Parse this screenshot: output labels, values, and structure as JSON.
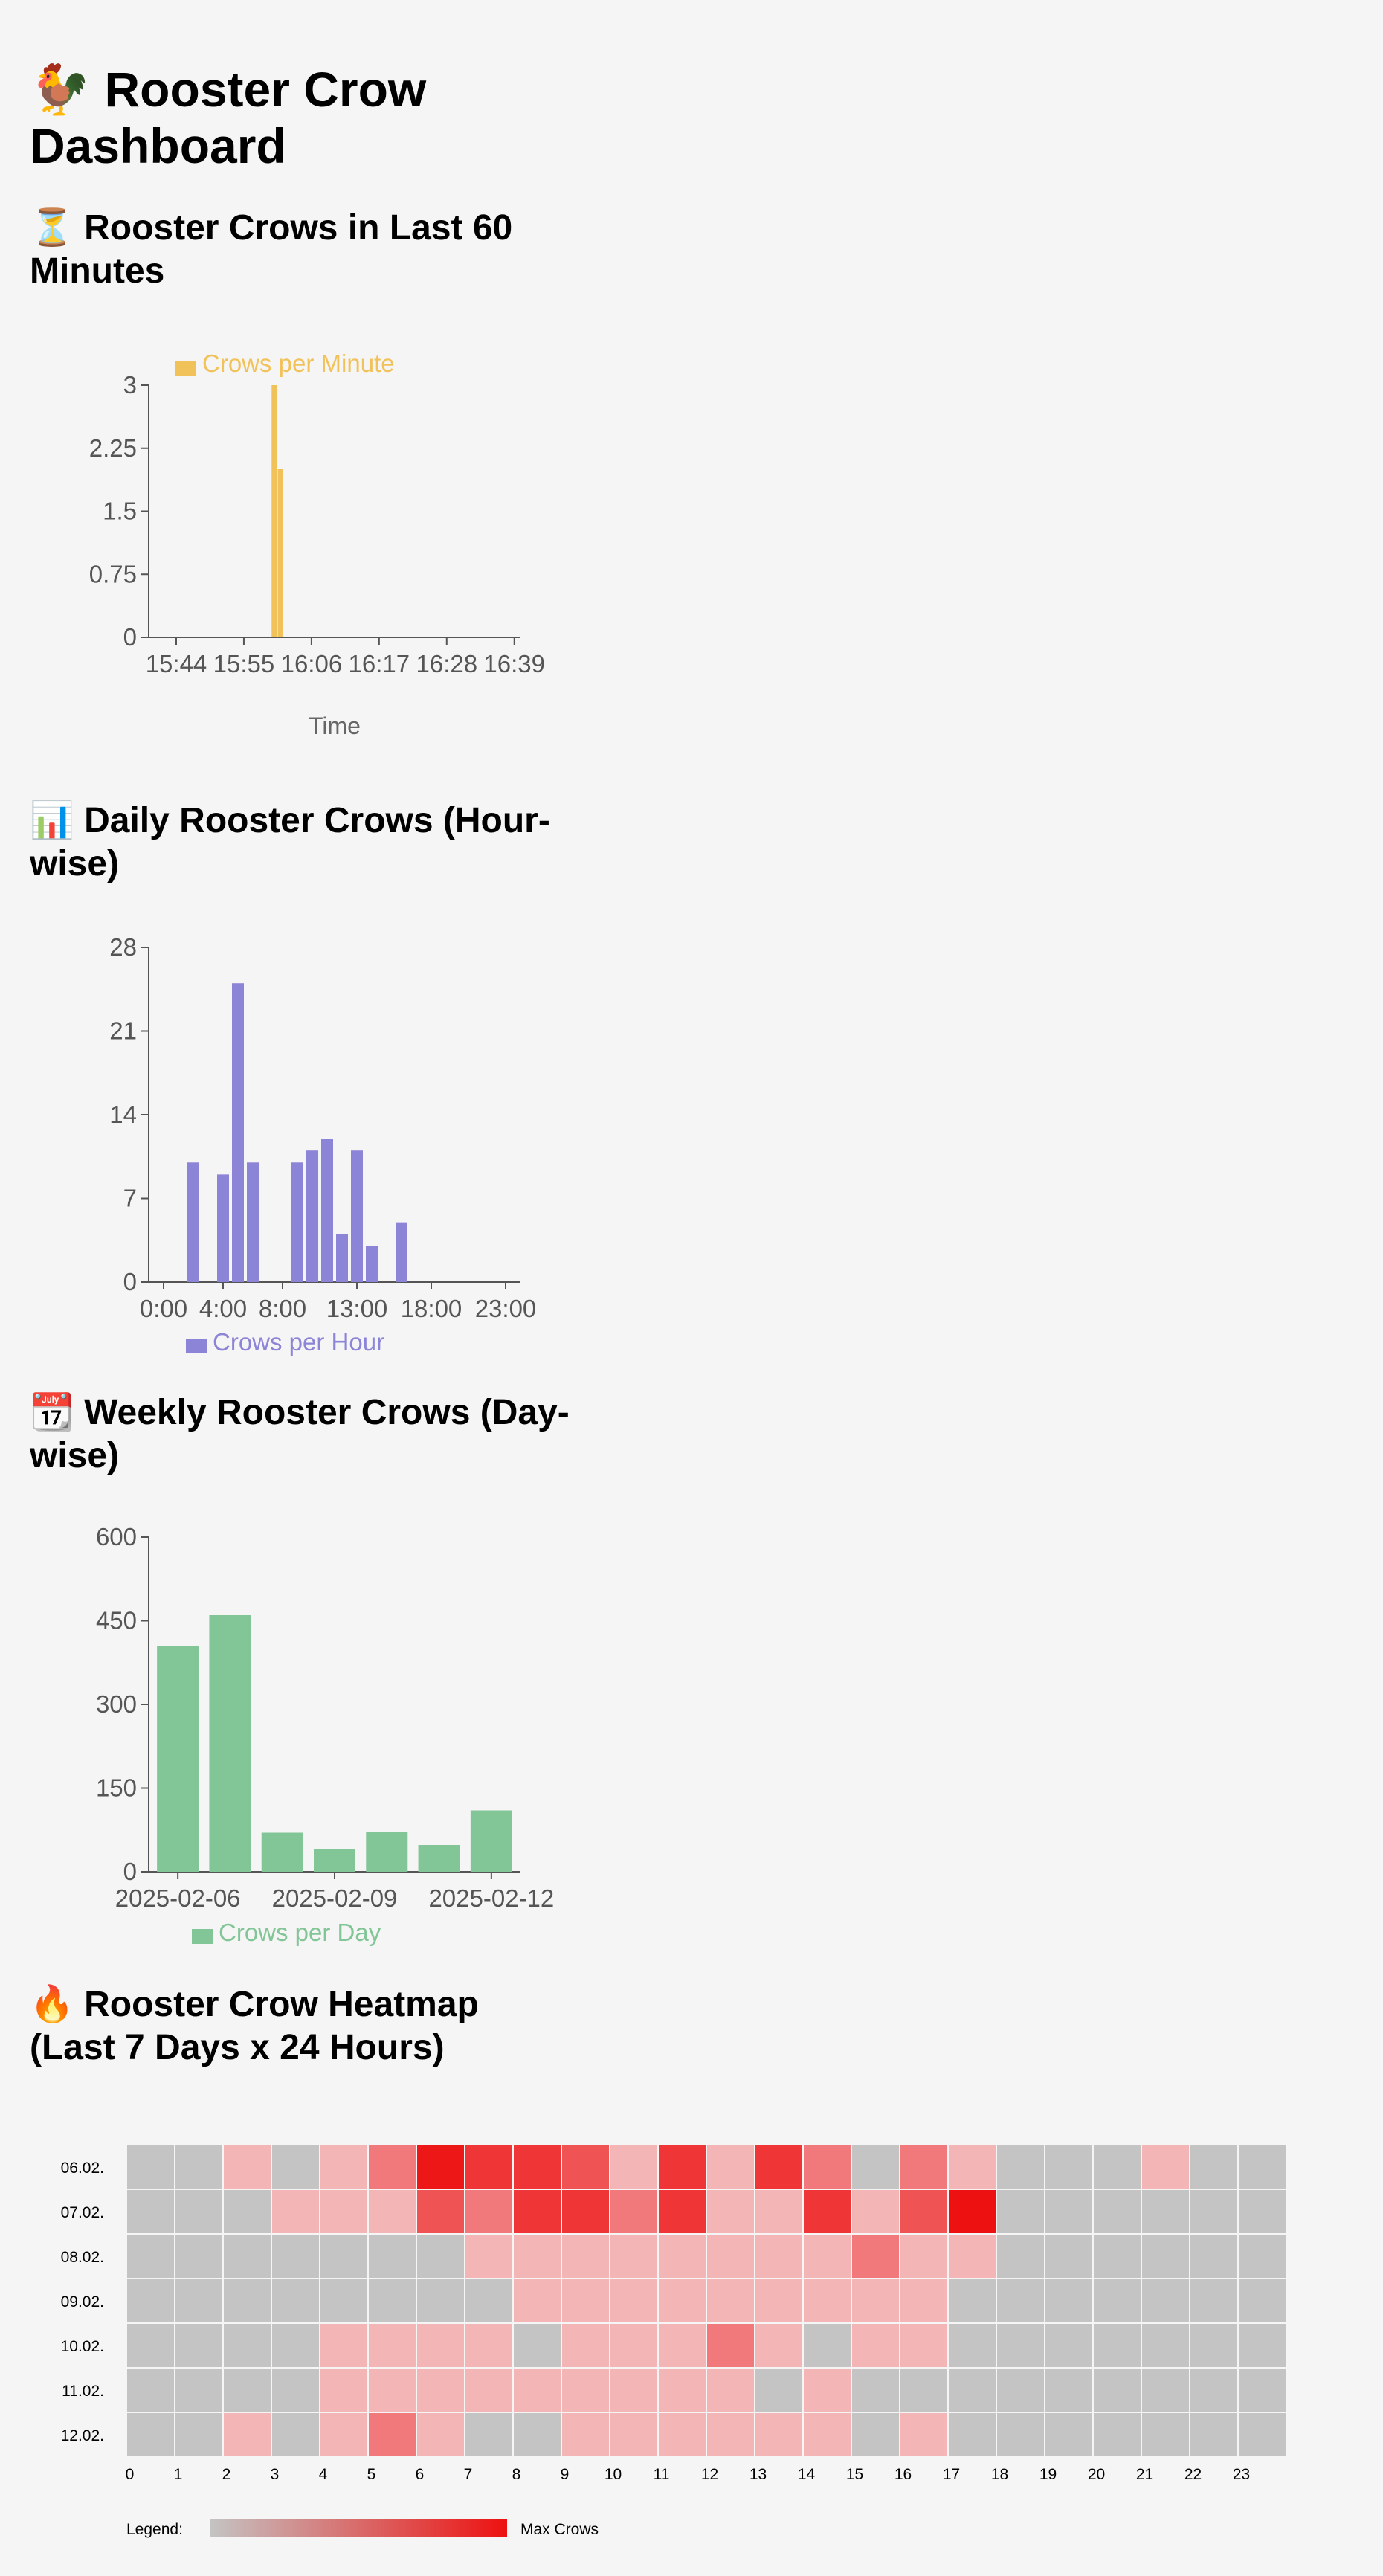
{
  "header": {
    "icon": "rooster-icon",
    "title": "🐓 Rooster Crow Dashboard"
  },
  "sections": {
    "minute": {
      "icon": "hourglass-icon",
      "title": "⏳ Rooster Crows in Last 60 Minutes"
    },
    "hourly": {
      "icon": "bar-chart-icon",
      "title": "📊 Daily Rooster Crows (Hour-wise)"
    },
    "weekly": {
      "icon": "calendar-icon",
      "title": "📆 Weekly Rooster Crows (Day-wise)"
    },
    "heatmap": {
      "icon": "fire-icon",
      "title": "🔥 Rooster Crow Heatmap (Last 7 Days x 24 Hours)"
    }
  },
  "colors": {
    "minute": "#f2c25a",
    "hourly": "#8c84d6",
    "weekly": "#82c596",
    "heat_empty": "#c4c4c4",
    "heat_low": "#f4c4c6",
    "heat_high": "#ee1111"
  },
  "chart_data": [
    {
      "id": "minute",
      "type": "bar",
      "legend": "Crows per Minute",
      "legend_position": "top",
      "xlabel": "Time",
      "ylabel": "",
      "ylim": [
        0,
        3
      ],
      "yticks": [
        0,
        0.75,
        1.5,
        2.25,
        3
      ],
      "xticks": [
        "15:44",
        "15:55",
        "16:06",
        "16:17",
        "16:28",
        "16:39"
      ],
      "x_minute_range": [
        944,
        1000
      ],
      "x": [
        "16:00",
        "16:01"
      ],
      "values": [
        3,
        2
      ]
    },
    {
      "id": "hourly",
      "type": "bar",
      "legend": "Crows per Hour",
      "legend_position": "bottom",
      "ylim": [
        0,
        28
      ],
      "yticks": [
        0,
        7,
        14,
        21,
        28
      ],
      "xticks": [
        "0:00",
        "4:00",
        "8:00",
        "13:00",
        "18:00",
        "23:00"
      ],
      "categories": [
        "0:00",
        "1:00",
        "2:00",
        "3:00",
        "4:00",
        "5:00",
        "6:00",
        "7:00",
        "8:00",
        "9:00",
        "10:00",
        "11:00",
        "12:00",
        "13:00",
        "14:00",
        "15:00",
        "16:00",
        "17:00",
        "18:00",
        "19:00",
        "20:00",
        "21:00",
        "22:00",
        "23:00"
      ],
      "values": [
        0,
        0,
        10,
        0,
        9,
        25,
        10,
        0,
        0,
        10,
        11,
        12,
        4,
        11,
        3,
        0,
        5,
        0,
        0,
        0,
        0,
        0,
        0,
        0
      ]
    },
    {
      "id": "weekly",
      "type": "bar",
      "legend": "Crows per Day",
      "legend_position": "bottom",
      "ylim": [
        0,
        600
      ],
      "yticks": [
        0,
        150,
        300,
        450,
        600
      ],
      "xticks": [
        "2025-02-06",
        "2025-02-09",
        "2025-02-12"
      ],
      "categories": [
        "2025-02-06",
        "2025-02-07",
        "2025-02-08",
        "2025-02-09",
        "2025-02-10",
        "2025-02-11",
        "2025-02-12"
      ],
      "values": [
        405,
        460,
        70,
        40,
        72,
        48,
        110
      ]
    },
    {
      "id": "heatmap",
      "type": "heatmap",
      "legend_label": "Legend:",
      "legend_max_label": "Max Crows",
      "rows": [
        "06.02.",
        "07.02.",
        "08.02.",
        "09.02.",
        "10.02.",
        "11.02.",
        "12.02."
      ],
      "columns": [
        "0",
        "1",
        "2",
        "3",
        "4",
        "5",
        "6",
        "7",
        "8",
        "9",
        "10",
        "11",
        "12",
        "13",
        "14",
        "15",
        "16",
        "17",
        "18",
        "19",
        "20",
        "21",
        "22",
        "23"
      ],
      "max": 60,
      "values": [
        [
          0,
          0,
          5,
          0,
          5,
          25,
          58,
          48,
          48,
          38,
          5,
          48,
          5,
          48,
          25,
          0,
          25,
          5,
          0,
          0,
          0,
          5,
          0,
          0
        ],
        [
          0,
          0,
          0,
          5,
          5,
          5,
          38,
          25,
          48,
          48,
          25,
          48,
          5,
          5,
          48,
          5,
          38,
          60,
          0,
          0,
          0,
          0,
          0,
          0
        ],
        [
          0,
          0,
          0,
          0,
          0,
          0,
          0,
          5,
          5,
          5,
          5,
          5,
          5,
          5,
          5,
          25,
          5,
          5,
          0,
          0,
          0,
          0,
          0,
          0
        ],
        [
          0,
          0,
          0,
          0,
          0,
          0,
          0,
          0,
          5,
          5,
          5,
          5,
          5,
          5,
          5,
          5,
          5,
          0,
          0,
          0,
          0,
          0,
          0,
          0
        ],
        [
          0,
          0,
          0,
          0,
          5,
          5,
          5,
          5,
          0,
          5,
          5,
          5,
          25,
          5,
          0,
          5,
          5,
          0,
          0,
          0,
          0,
          0,
          0,
          0
        ],
        [
          0,
          0,
          0,
          0,
          5,
          5,
          5,
          5,
          5,
          5,
          5,
          5,
          5,
          0,
          5,
          0,
          0,
          0,
          0,
          0,
          0,
          0,
          0,
          0
        ],
        [
          0,
          0,
          5,
          0,
          5,
          25,
          5,
          0,
          0,
          5,
          5,
          5,
          5,
          5,
          5,
          0,
          5,
          0,
          0,
          0,
          0,
          0,
          0,
          0
        ]
      ]
    }
  ]
}
